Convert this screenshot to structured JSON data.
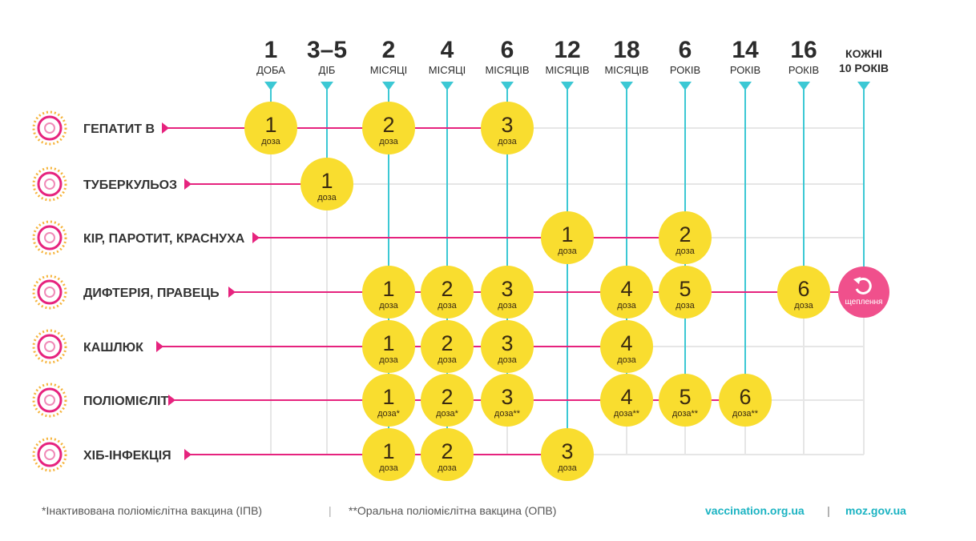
{
  "colors": {
    "dose": "#f9dd2f",
    "booster": "#f0508c",
    "row_line": "#e6237e",
    "column_line": "#3cc8d4",
    "grid": "#e6e6e6",
    "link": "#1ab3c2"
  },
  "columns": [
    {
      "num": "1",
      "unit": "ДОБА"
    },
    {
      "num": "3–5",
      "unit": "ДІБ"
    },
    {
      "num": "2",
      "unit": "МІСЯЦІ"
    },
    {
      "num": "4",
      "unit": "МІСЯЦІ"
    },
    {
      "num": "6",
      "unit": "МІСЯЦІВ"
    },
    {
      "num": "12",
      "unit": "МІСЯЦІВ"
    },
    {
      "num": "18",
      "unit": "МІСЯЦІВ"
    },
    {
      "num": "6",
      "unit": "РОКІВ"
    },
    {
      "num": "14",
      "unit": "РОКІВ"
    },
    {
      "num": "16",
      "unit": "РОКІВ"
    },
    {
      "num": "КОЖНІ",
      "unit": "10 РОКІВ"
    }
  ],
  "dose_word": "доза",
  "booster_label": "щеплення",
  "booster_icon": "refresh-icon",
  "rows": [
    {
      "label": "ГЕПАТИТ В",
      "icon": "hepatitis-virus-icon",
      "doses": [
        {
          "col": 0,
          "n": "1",
          "mark": ""
        },
        {
          "col": 2,
          "n": "2",
          "mark": ""
        },
        {
          "col": 4,
          "n": "3",
          "mark": ""
        }
      ]
    },
    {
      "label": "ТУБЕРКУЛЬОЗ",
      "icon": "tuberculosis-bacteria-icon",
      "doses": [
        {
          "col": 1,
          "n": "1",
          "mark": ""
        }
      ]
    },
    {
      "label": "КІР, ПАРОТИТ, КРАСНУХА",
      "icon": "measles-virus-icon",
      "doses": [
        {
          "col": 5,
          "n": "1",
          "mark": ""
        },
        {
          "col": 7,
          "n": "2",
          "mark": ""
        }
      ]
    },
    {
      "label": "ДИФТЕРІЯ, ПРАВЕЦЬ",
      "icon": "diphtheria-bacteria-icon",
      "doses": [
        {
          "col": 2,
          "n": "1",
          "mark": ""
        },
        {
          "col": 3,
          "n": "2",
          "mark": ""
        },
        {
          "col": 4,
          "n": "3",
          "mark": ""
        },
        {
          "col": 6,
          "n": "4",
          "mark": ""
        },
        {
          "col": 7,
          "n": "5",
          "mark": ""
        },
        {
          "col": 9,
          "n": "6",
          "mark": ""
        },
        {
          "col": 10,
          "booster": true
        }
      ]
    },
    {
      "label": "КАШЛЮК",
      "icon": "pertussis-bacteria-icon",
      "doses": [
        {
          "col": 2,
          "n": "1",
          "mark": ""
        },
        {
          "col": 3,
          "n": "2",
          "mark": ""
        },
        {
          "col": 4,
          "n": "3",
          "mark": ""
        },
        {
          "col": 6,
          "n": "4",
          "mark": ""
        }
      ]
    },
    {
      "label": "ПОЛІОМІЄЛІТ",
      "icon": "polio-virus-icon",
      "doses": [
        {
          "col": 2,
          "n": "1",
          "mark": "*"
        },
        {
          "col": 3,
          "n": "2",
          "mark": "*"
        },
        {
          "col": 4,
          "n": "3",
          "mark": "**"
        },
        {
          "col": 6,
          "n": "4",
          "mark": "**"
        },
        {
          "col": 7,
          "n": "5",
          "mark": "**"
        },
        {
          "col": 8,
          "n": "6",
          "mark": "**"
        }
      ]
    },
    {
      "label": "ХІБ-ІНФЕКЦІЯ",
      "icon": "hib-bacteria-icon",
      "doses": [
        {
          "col": 2,
          "n": "1",
          "mark": ""
        },
        {
          "col": 3,
          "n": "2",
          "mark": ""
        },
        {
          "col": 5,
          "n": "3",
          "mark": ""
        }
      ]
    }
  ],
  "footer": {
    "note1": "*Інактивована поліомієлітна вакцина (ІПВ)",
    "separator": "|",
    "note2": "**Оральна поліомієлітна вакцина (ОПВ)",
    "link1": "vaccination.org.ua",
    "link2": "moz.gov.ua"
  }
}
